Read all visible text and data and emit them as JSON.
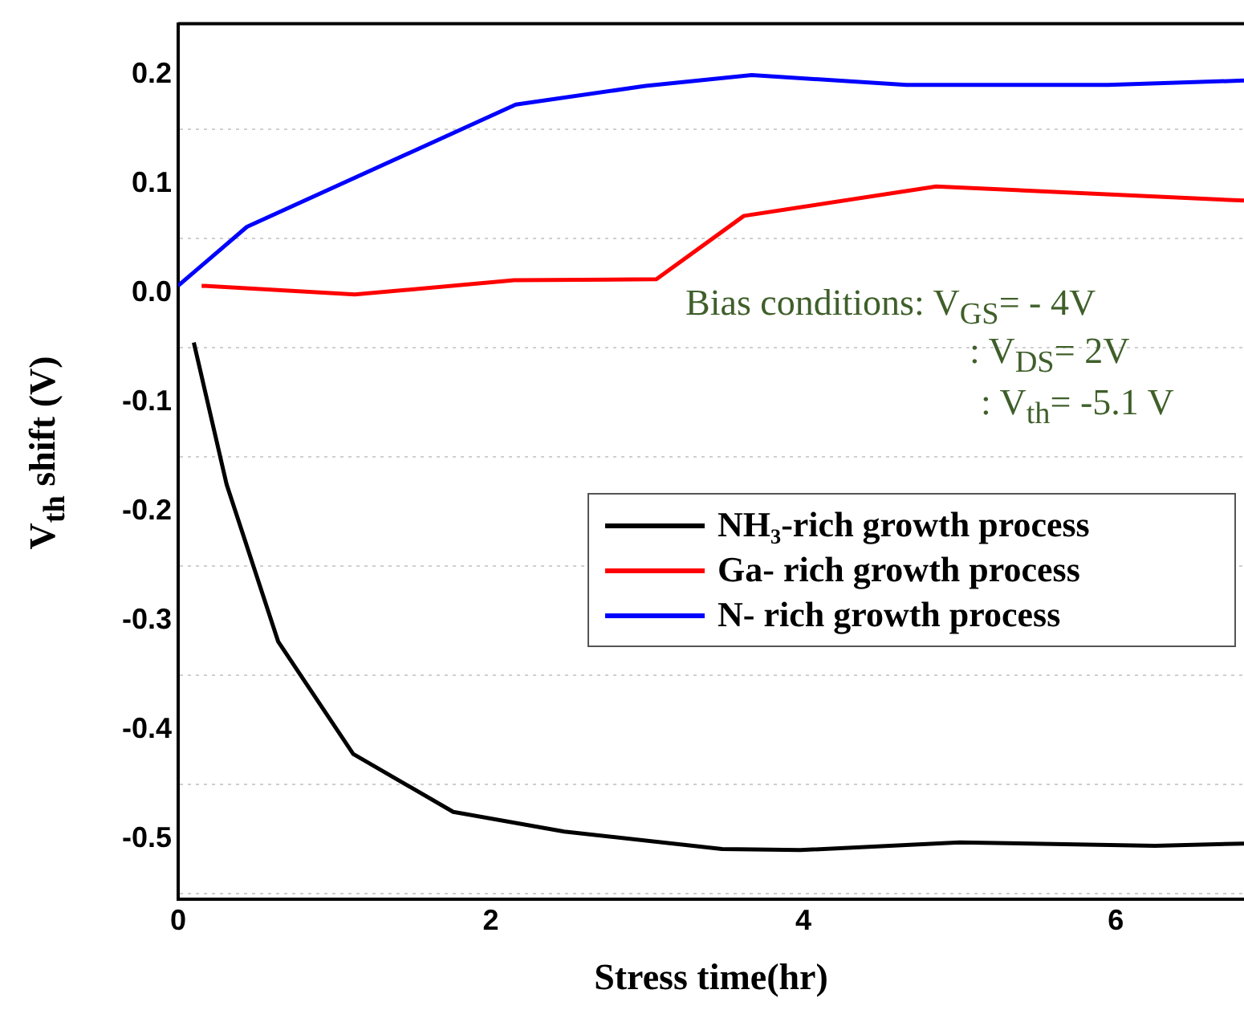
{
  "chart_data": {
    "type": "line",
    "xlabel": "Stress time(hr)",
    "ylabel": "V$_{th}$ shift (V)",
    "xlim": [
      0,
      6.82
    ],
    "xticks": [
      0,
      2,
      4,
      6
    ],
    "ylim": [
      -0.555,
      0.247
    ],
    "yticks": [
      {
        "value": -0.55,
        "label": null
      },
      -0.5,
      {
        "value": -0.45,
        "label": null
      },
      -0.4,
      {
        "value": -0.35,
        "label": null
      },
      -0.3,
      {
        "value": -0.25,
        "label": null
      },
      -0.2,
      {
        "value": -0.15,
        "label": null
      },
      -0.1,
      {
        "value": -0.05,
        "label": null
      },
      {
        "value": 0,
        "label": "0.0"
      },
      {
        "value": 0.05,
        "label": null
      },
      0.1,
      {
        "value": 0.15,
        "label": null
      },
      0.2
    ],
    "grid": "y",
    "legend": "right",
    "marker": "none",
    "line_style": "solid",
    "annotations": [
      "Bias conditions: V$_{GS}$= - 4V",
      ": V$_{DS}$= 2V",
      ": V$_{th}$= -5.1 V"
    ],
    "series": [
      {
        "name": "NH₃-rich growth process",
        "color": "#000000",
        "x": [
          0.1,
          0.31,
          0.64,
          1.12,
          1.76,
          2.47,
          3.48,
          3.98,
          5.0,
          6.25,
          6.82
        ],
        "values": [
          -0.045,
          -0.175,
          -0.319,
          -0.422,
          -0.475,
          -0.493,
          -0.509,
          -0.51,
          -0.503,
          -0.506,
          -0.504
        ]
      },
      {
        "name": "Ga- rich growth process",
        "color": "#ff0000",
        "x": [
          0.15,
          1.13,
          2.15,
          3.06,
          3.62,
          4.85,
          6.82
        ],
        "values": [
          0.007,
          -0.001,
          0.012,
          0.013,
          0.071,
          0.098,
          0.085
        ]
      },
      {
        "name": "N- rich growth process",
        "color": "#0000ff",
        "x": [
          0,
          0.44,
          2.16,
          2.99,
          3.67,
          4.66,
          5.95,
          6.82
        ],
        "values": [
          0.007,
          0.061,
          0.173,
          0.19,
          0.2,
          0.191,
          0.191,
          0.195
        ]
      }
    ]
  }
}
